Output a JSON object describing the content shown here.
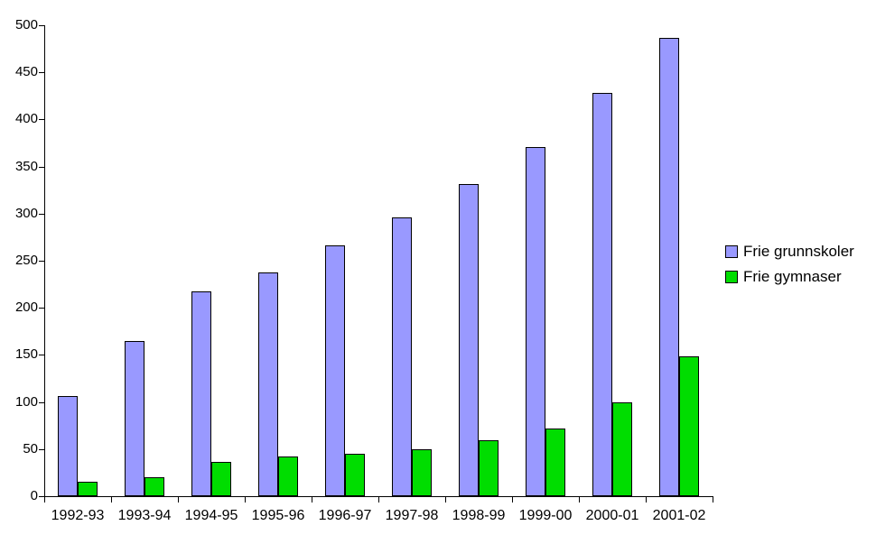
{
  "chart_data": {
    "type": "bar",
    "title": "",
    "xlabel": "",
    "ylabel": "",
    "categories": [
      "1992-93",
      "1993-94",
      "1994-95",
      "1995-96",
      "1996-97",
      "1997-98",
      "1998-99",
      "1999-00",
      "2000-01",
      "2001-02"
    ],
    "series": [
      {
        "name": "Frie grunnskoler",
        "color": "#9999FF",
        "values": [
          106,
          165,
          217,
          238,
          266,
          296,
          331,
          371,
          428,
          487
        ]
      },
      {
        "name": "Frie gymnaser",
        "color": "#00DD00",
        "values": [
          15,
          20,
          36,
          42,
          45,
          50,
          59,
          72,
          100,
          148
        ]
      }
    ],
    "ylim": [
      0,
      500
    ],
    "yticks": [
      0,
      50,
      100,
      150,
      200,
      250,
      300,
      350,
      400,
      450,
      500
    ],
    "grid": false,
    "legend_position": "right",
    "colors": {
      "background": "#FFFFFF",
      "axis": "#000000",
      "bar_border": "#000000",
      "text": "#000000"
    }
  }
}
